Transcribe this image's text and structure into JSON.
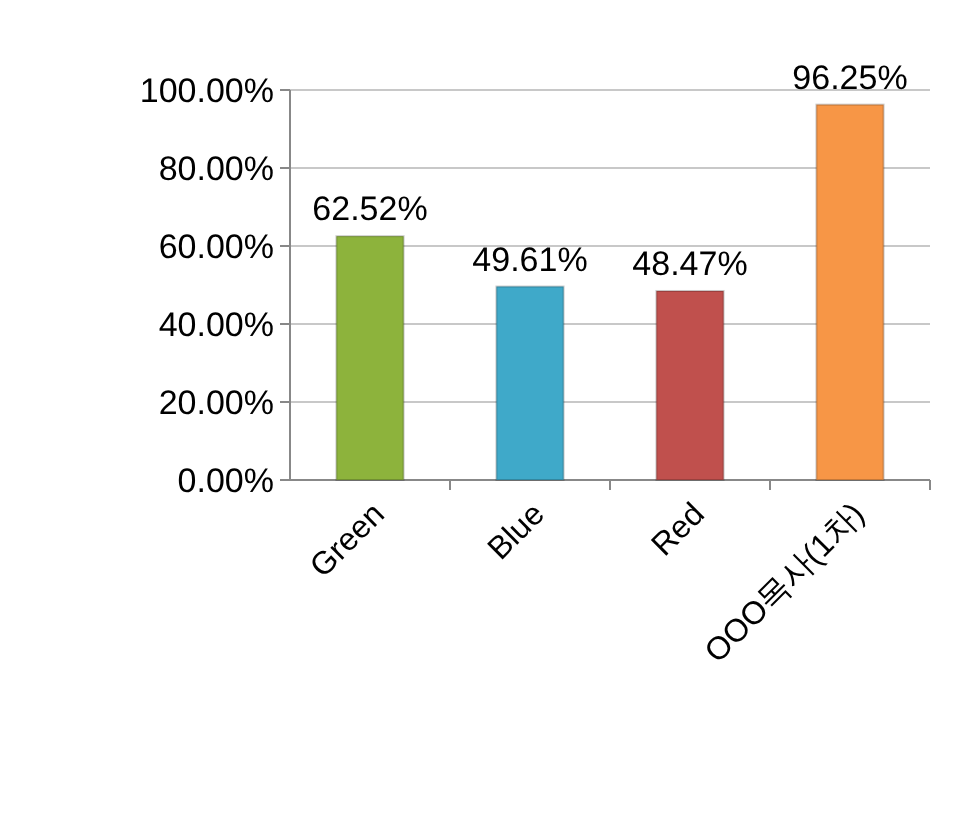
{
  "chart_data": {
    "type": "bar",
    "categories": [
      "Green",
      "Blue",
      "Red",
      "OOO목사(1차)"
    ],
    "values": [
      62.52,
      49.61,
      48.47,
      96.25
    ],
    "colors": [
      "#8db33c",
      "#3fa9c9",
      "#c0504d",
      "#f79646"
    ],
    "value_labels": [
      "62.52%",
      "49.61%",
      "48.47%",
      "96.25%"
    ],
    "ylim": [
      0,
      100
    ],
    "yticks": [
      {
        "value": 0,
        "label": "0.00%"
      },
      {
        "value": 20,
        "label": "20.00%"
      },
      {
        "value": 40,
        "label": "40.00%"
      },
      {
        "value": 60,
        "label": "60.00%"
      },
      {
        "value": 80,
        "label": "80.00%"
      },
      {
        "value": 100,
        "label": "100.00%"
      }
    ],
    "grid": "y"
  }
}
